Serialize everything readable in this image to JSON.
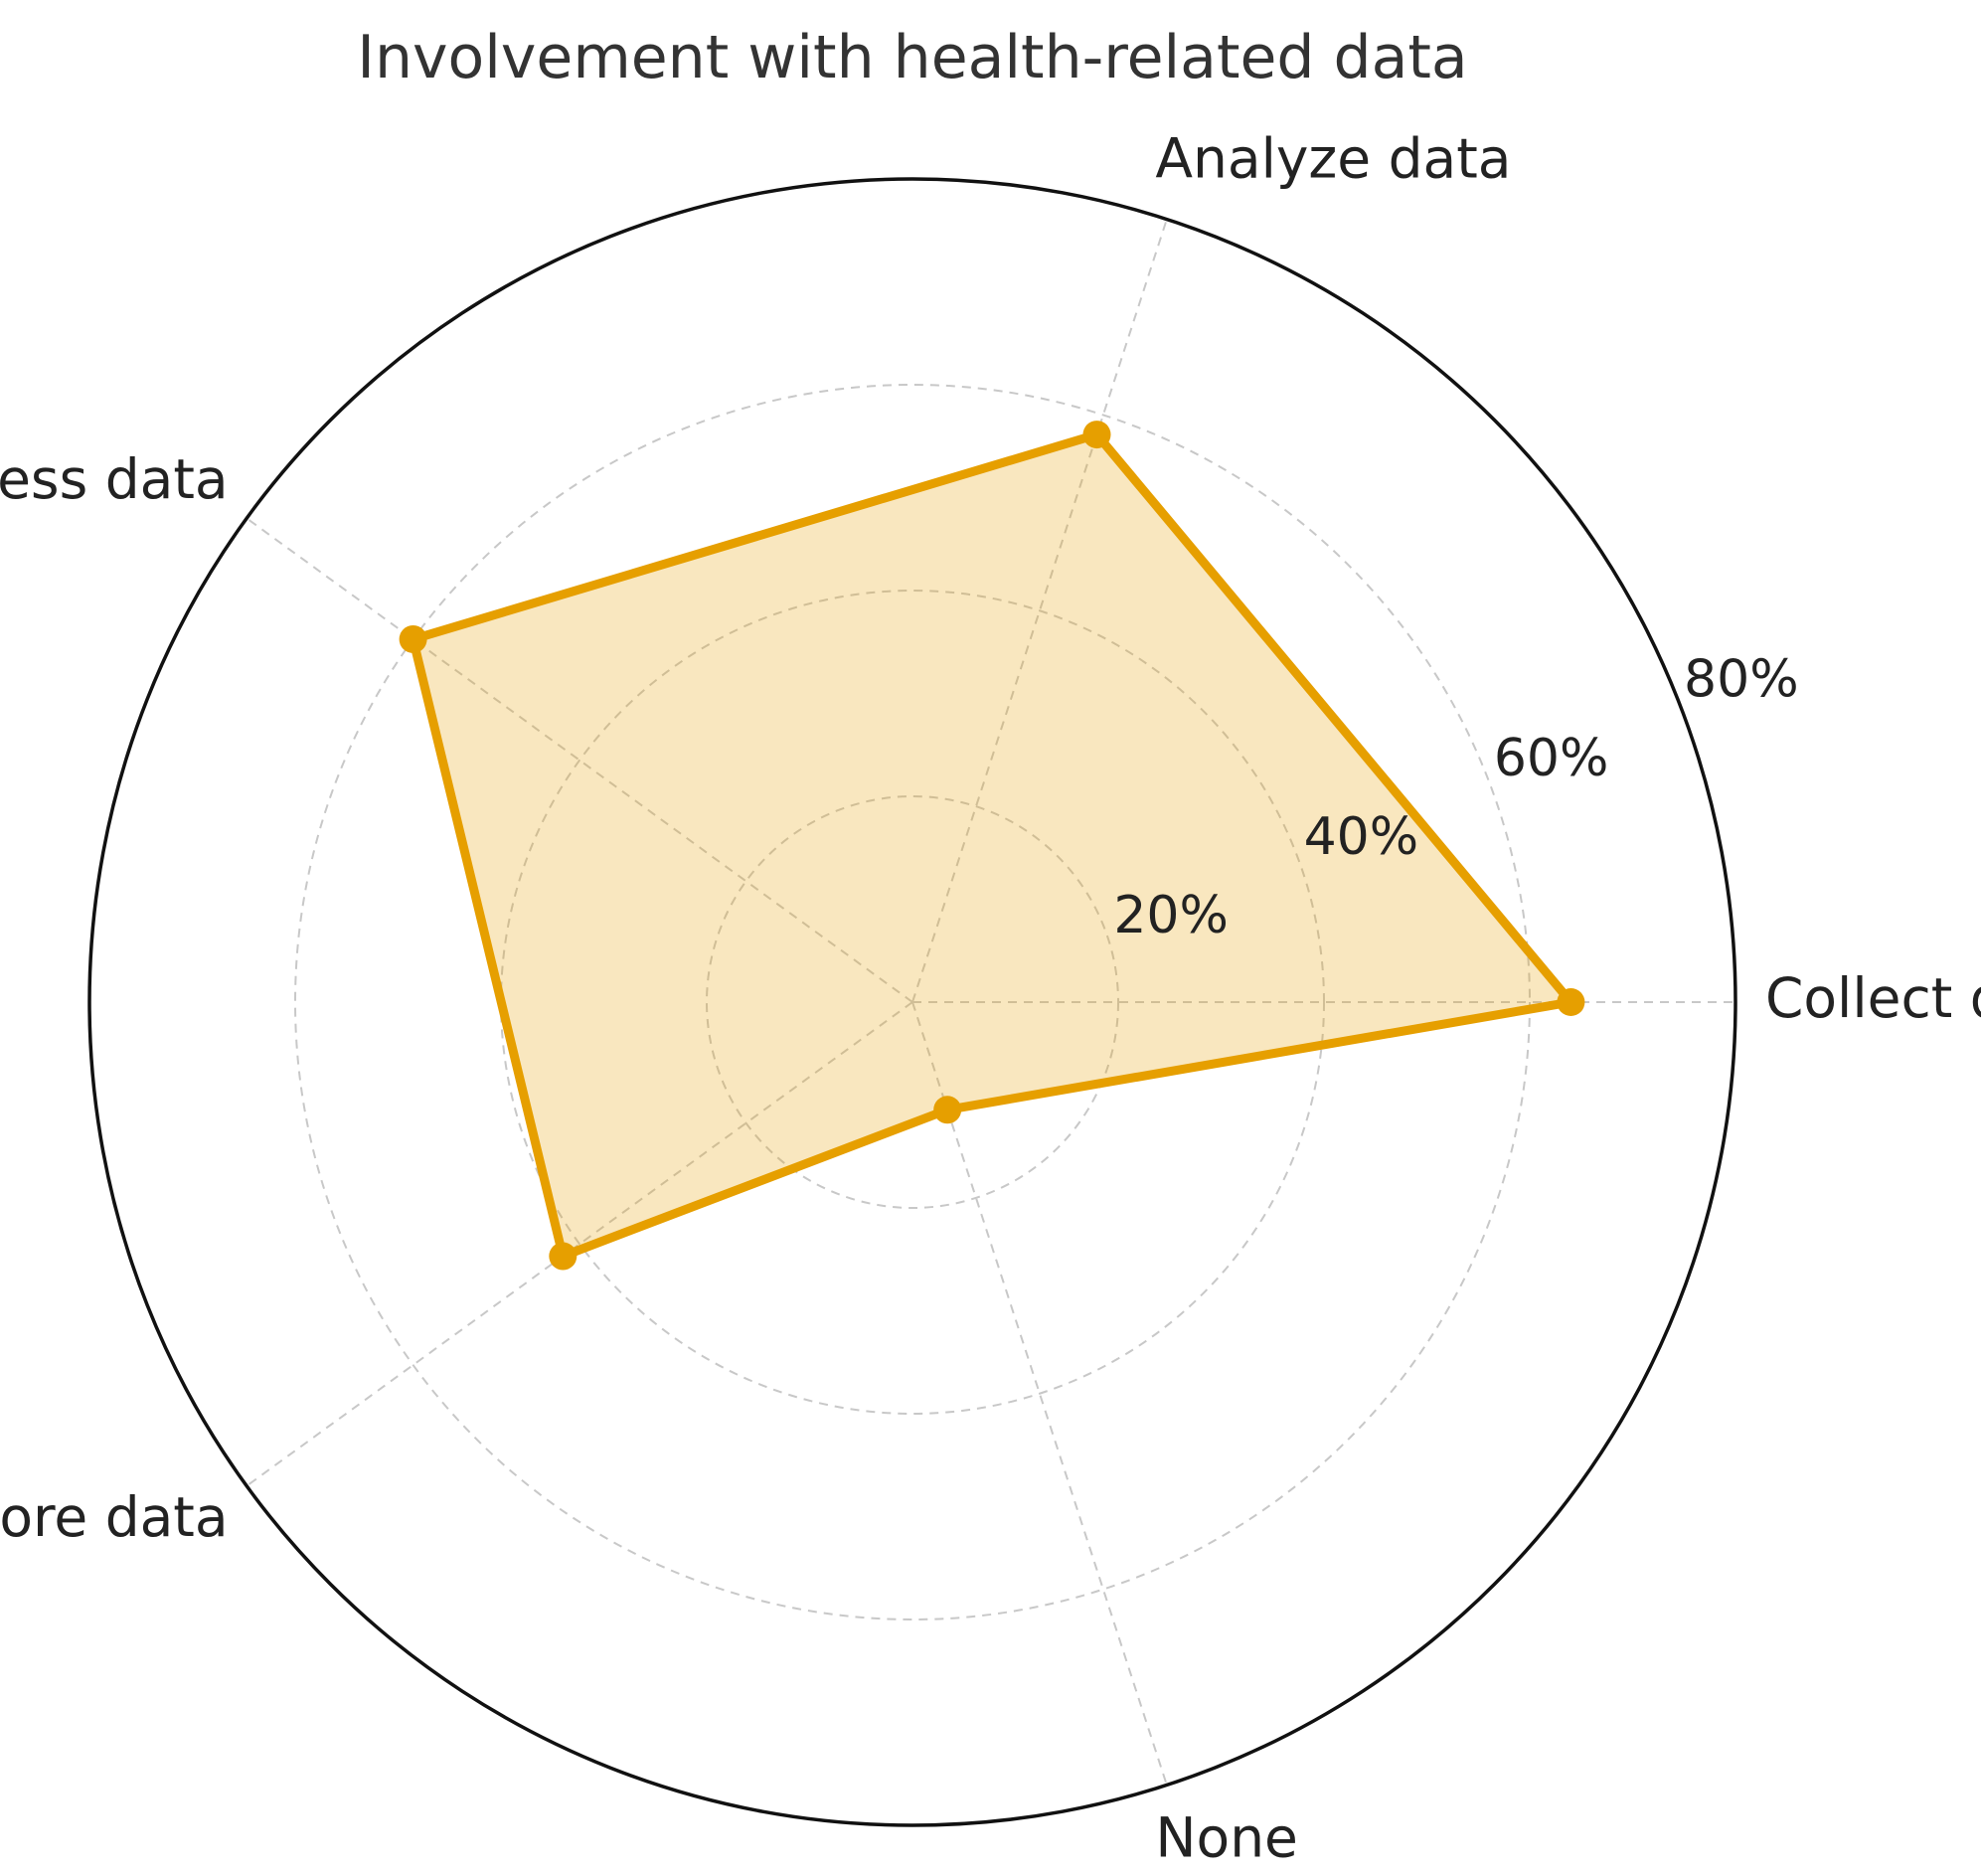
{
  "chart_data": {
    "type": "radar",
    "title": "Involvement with health-related data",
    "categories": [
      "Collect data",
      "Analyze data",
      "Access data",
      "Store data",
      "None"
    ],
    "series": [
      {
        "values": [
          64,
          58,
          60,
          42,
          11
        ]
      }
    ],
    "rlim": [
      0,
      80
    ],
    "r_ticks": [
      20,
      40,
      60,
      80
    ],
    "r_tick_labels": [
      "20%",
      "40%",
      "60%",
      "80%"
    ],
    "grid": true,
    "colors": {
      "line": "#e69f00",
      "fill": "#e69f00",
      "fill_opacity": 0.25,
      "outer_ring": "#111111",
      "grid": "#c8c8c8"
    }
  }
}
